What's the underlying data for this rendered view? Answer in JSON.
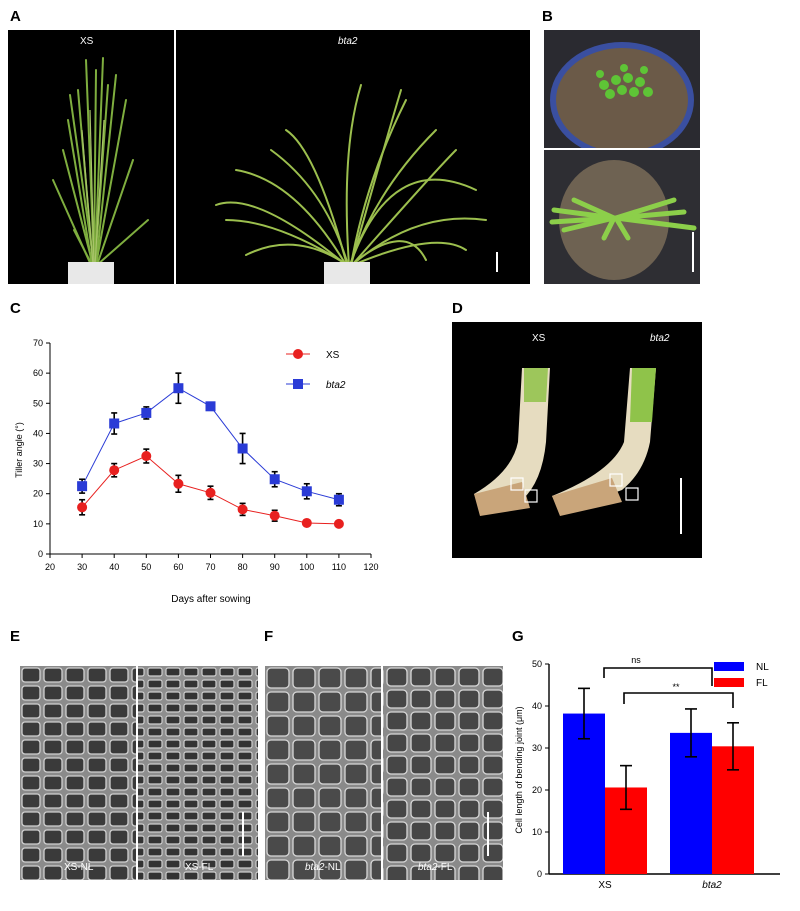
{
  "panels": {
    "a": "A",
    "b": "B",
    "c": "C",
    "d": "D",
    "e": "E",
    "f": "F",
    "g": "G"
  },
  "photo_labels": {
    "a_left": "XS",
    "a_right": "bta2",
    "d_left": "XS",
    "d_right": "bta2",
    "e_left": "XS-NL",
    "e_right": "XS-FL",
    "f_left_prefix": "bta2",
    "f_left_suffix": "-NL",
    "f_right_prefix": "bta2",
    "f_right_suffix": "-FL"
  },
  "colors": {
    "xs": "#e8201f",
    "bta2": "#2a3bd6",
    "nl": "#0000ff",
    "fl": "#ff0000"
  },
  "chart_data": [
    {
      "type": "line",
      "panel": "C",
      "xlabel": "Days after sowing",
      "ylabel": "Tiller angle (°)",
      "xlim": [
        20,
        120
      ],
      "ylim": [
        0,
        70
      ],
      "xticks": [
        20,
        30,
        40,
        50,
        60,
        70,
        80,
        90,
        100,
        110,
        120
      ],
      "yticks": [
        0,
        10,
        20,
        30,
        40,
        50,
        60,
        70
      ],
      "grid": false,
      "legend": "top-right",
      "x": [
        30,
        40,
        50,
        60,
        70,
        80,
        90,
        100,
        110
      ],
      "series": [
        {
          "name": "XS",
          "marker": "circle",
          "values": [
            15.5,
            27.8,
            32.5,
            23.3,
            20.3,
            14.8,
            12.7,
            10.3,
            10.0
          ],
          "errors": [
            2.5,
            2.2,
            2.3,
            2.8,
            2.2,
            2.0,
            1.8,
            0.6,
            0.4
          ]
        },
        {
          "name": "bta2",
          "marker": "square",
          "values": [
            22.5,
            43.3,
            46.8,
            55.0,
            49.0,
            35.0,
            24.8,
            20.8,
            18.0
          ],
          "errors": [
            2.3,
            3.5,
            2.0,
            5.0,
            1.3,
            5.0,
            2.5,
            2.5,
            2.0
          ]
        }
      ]
    },
    {
      "type": "bar",
      "panel": "G",
      "ylabel": "Cell length of bending joint (μm)",
      "ylim": [
        0,
        50
      ],
      "yticks": [
        0,
        10,
        20,
        30,
        40,
        50
      ],
      "categories": [
        "XS",
        "bta2"
      ],
      "legend": "top-right",
      "series": [
        {
          "name": "NL",
          "values": [
            38.2,
            33.6
          ],
          "errors": [
            6.0,
            5.7
          ]
        },
        {
          "name": "FL",
          "values": [
            20.6,
            30.4
          ],
          "errors": [
            5.2,
            5.6
          ]
        }
      ],
      "annotations": [
        "ns",
        "**"
      ]
    }
  ]
}
